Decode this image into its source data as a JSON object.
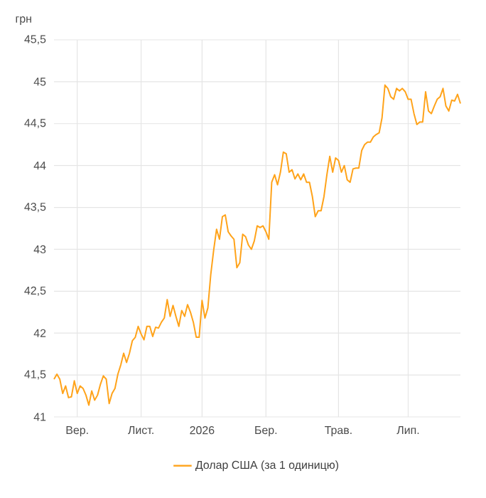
{
  "chart_data": {
    "type": "line",
    "ylabel": "грн",
    "categories": [
      null,
      null,
      null,
      null,
      null,
      null,
      null,
      null,
      "Вер.",
      null,
      null,
      null,
      null,
      null,
      null,
      null,
      null,
      null,
      null,
      null,
      null,
      null,
      null,
      null,
      null,
      null,
      null,
      null,
      null,
      null,
      "Лист.",
      null,
      null,
      null,
      null,
      null,
      null,
      null,
      null,
      null,
      null,
      null,
      null,
      null,
      null,
      null,
      null,
      null,
      null,
      null,
      null,
      "2026",
      null,
      null,
      null,
      null,
      null,
      null,
      null,
      null,
      null,
      null,
      null,
      null,
      null,
      null,
      null,
      null,
      null,
      null,
      null,
      null,
      null,
      "Бер.",
      null,
      null,
      null,
      null,
      null,
      null,
      null,
      null,
      null,
      null,
      null,
      null,
      null,
      null,
      null,
      null,
      null,
      null,
      null,
      null,
      null,
      null,
      null,
      null,
      "Трав.",
      null,
      null,
      null,
      null,
      null,
      null,
      null,
      null,
      null,
      null,
      null,
      null,
      null,
      null,
      null,
      null,
      null,
      null,
      null,
      null,
      null,
      null,
      null,
      "Лип.",
      null,
      null,
      null,
      null,
      null,
      null,
      null,
      null,
      null,
      null,
      null,
      null,
      null,
      null,
      null,
      null,
      null,
      null
    ],
    "ylim": [
      41,
      45.5
    ],
    "yticks": [
      41,
      {
        "value": 41.5,
        "label": "41,5"
      },
      42,
      {
        "value": 42.5,
        "label": "42,5"
      },
      43,
      {
        "value": 43.5,
        "label": "43,5"
      },
      44,
      {
        "value": 44.5,
        "label": "44,5"
      },
      45,
      {
        "value": 45.5,
        "label": "45,5"
      }
    ],
    "grid": true,
    "legend": "bottom",
    "marker": "none",
    "line_style": "solid",
    "series": [
      {
        "name": "Долар США (за 1 одиницю)",
        "color": "#ffa31a",
        "values": [
          41.45,
          41.51,
          41.45,
          41.28,
          41.37,
          41.23,
          41.24,
          41.43,
          41.28,
          41.37,
          41.34,
          41.26,
          41.14,
          41.31,
          41.2,
          41.26,
          41.39,
          41.49,
          41.45,
          41.16,
          41.28,
          41.34,
          41.51,
          41.62,
          41.76,
          41.65,
          41.76,
          41.91,
          41.95,
          42.08,
          41.99,
          41.92,
          42.08,
          42.08,
          41.96,
          42.07,
          42.06,
          42.13,
          42.18,
          42.4,
          42.2,
          42.33,
          42.2,
          42.08,
          42.27,
          42.2,
          42.34,
          42.25,
          42.13,
          41.95,
          41.95,
          42.39,
          42.18,
          42.3,
          42.7,
          42.99,
          43.24,
          43.12,
          43.39,
          43.41,
          43.21,
          43.16,
          43.12,
          42.78,
          42.84,
          43.18,
          43.15,
          43.05,
          43.0,
          43.1,
          43.28,
          43.26,
          43.28,
          43.21,
          43.12,
          43.8,
          43.89,
          43.77,
          43.92,
          44.16,
          44.14,
          43.92,
          43.95,
          43.84,
          43.9,
          43.83,
          43.9,
          43.8,
          43.8,
          43.63,
          43.39,
          43.46,
          43.46,
          43.63,
          43.89,
          44.11,
          43.92,
          44.09,
          44.06,
          43.92,
          44.0,
          43.83,
          43.8,
          43.96,
          43.97,
          43.97,
          44.18,
          44.25,
          44.28,
          44.28,
          44.34,
          44.37,
          44.39,
          44.57,
          44.96,
          44.92,
          44.82,
          44.79,
          44.92,
          44.89,
          44.92,
          44.88,
          44.79,
          44.79,
          44.62,
          44.49,
          44.52,
          44.52,
          44.88,
          44.65,
          44.62,
          44.71,
          44.79,
          44.82,
          44.92,
          44.71,
          44.65,
          44.78,
          44.77,
          44.85,
          44.74
        ]
      }
    ]
  }
}
